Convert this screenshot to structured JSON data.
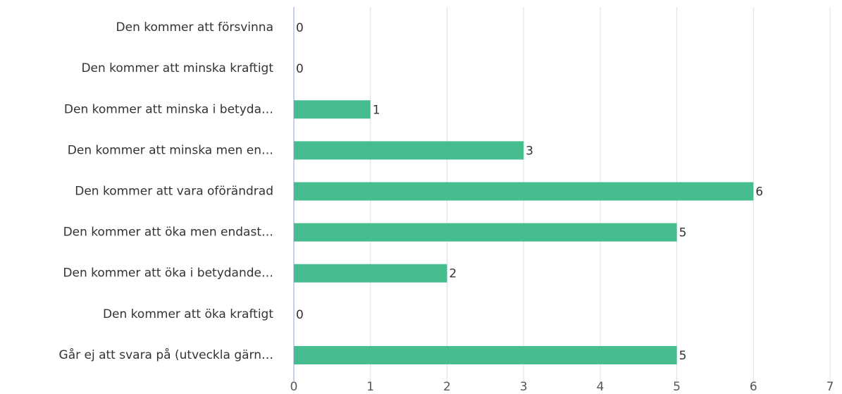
{
  "chart_data": {
    "type": "bar",
    "orientation": "horizontal",
    "categories": [
      "Den kommer att försvinna",
      "Den kommer att minska kraftigt",
      "Den kommer att minska i betyda…",
      "Den kommer att minska men en…",
      "Den kommer att vara oförändrad",
      "Den kommer att öka men endast…",
      "Den kommer att öka i betydande…",
      "Den kommer att öka kraftigt",
      "Går ej att svara på (utveckla gärn…"
    ],
    "values": [
      0,
      0,
      1,
      3,
      6,
      5,
      2,
      0,
      5
    ],
    "color": "#45bd8f",
    "xlim": [
      0,
      7
    ],
    "xticks": [
      0,
      1,
      2,
      3,
      4,
      5,
      6,
      7
    ],
    "grid": true
  }
}
